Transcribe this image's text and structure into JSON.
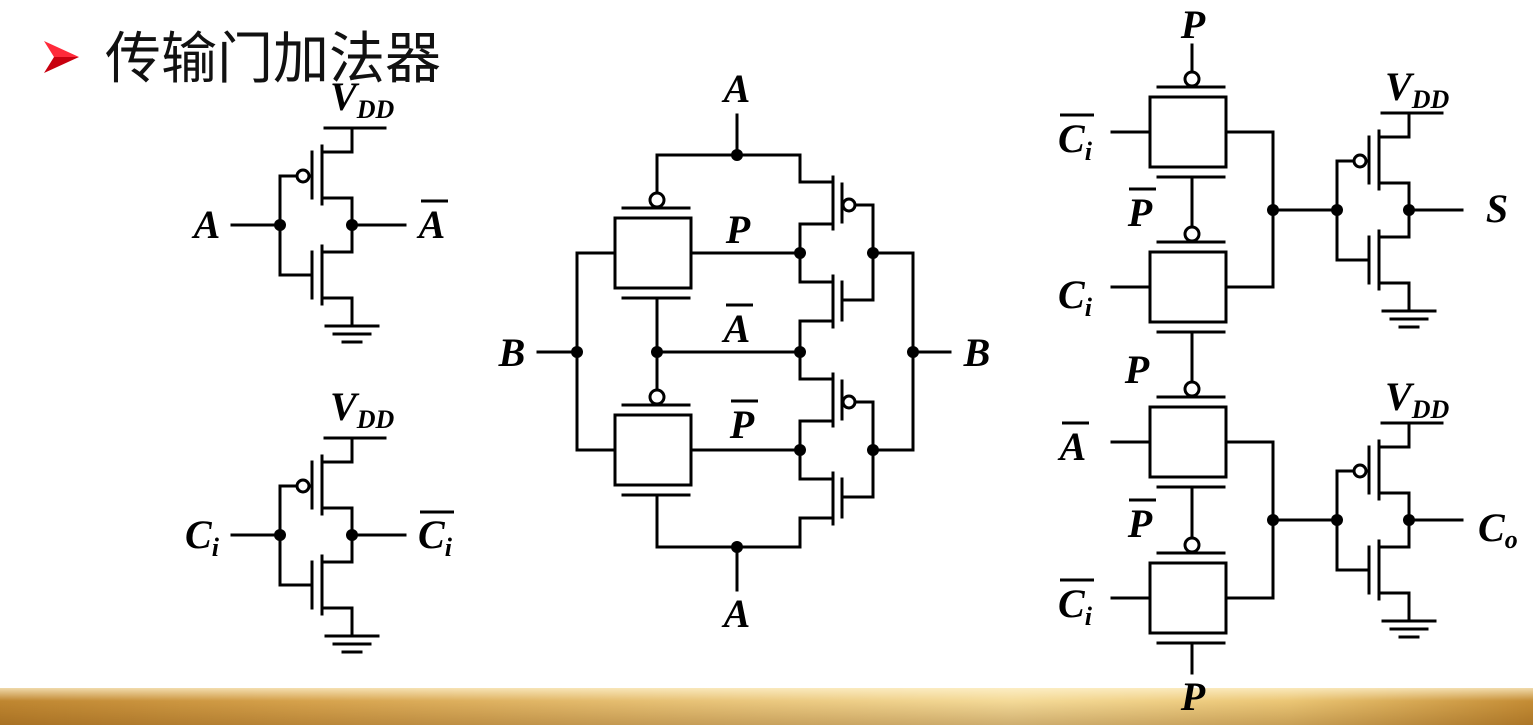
{
  "slide": {
    "bullet_icon": "arrow-bullet-icon",
    "title": "传输门加法器",
    "accent_color": "#e60012",
    "band_color": "#e2b864"
  },
  "signals": {
    "vdd": {
      "base": "V",
      "sub": "DD"
    },
    "a": {
      "base": "A"
    },
    "a_inv": {
      "base": "A",
      "overbar": true
    },
    "b": {
      "base": "B"
    },
    "p": {
      "base": "P"
    },
    "p_inv": {
      "base": "P",
      "overbar": true
    },
    "ci": {
      "base": "C",
      "sub": "i"
    },
    "ci_inv": {
      "base": "C",
      "sub": "i",
      "overbar": true
    },
    "s": {
      "base": "S"
    },
    "co": {
      "base": "C",
      "sub": "o"
    }
  }
}
